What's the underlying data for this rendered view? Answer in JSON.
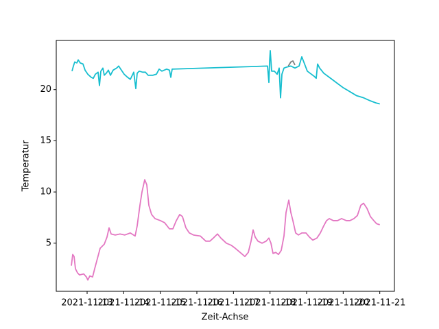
{
  "chart_data": {
    "type": "line",
    "xlabel": "Zeit-Achse",
    "ylabel": "Temperatur",
    "xlim": [
      "2021-11-12T03:45",
      "2021-11-21T09:36"
    ],
    "xticks": [
      "2021-11-13",
      "2021-11-14",
      "2021-11-15",
      "2021-11-16",
      "2021-11-17",
      "2021-11-18",
      "2021-11-19",
      "2021-11-20",
      "2021-11-21"
    ],
    "ylim": [
      0.3,
      24.8
    ],
    "yticks": [
      5,
      10,
      15,
      20
    ],
    "series": [
      {
        "color": "#7f7f7f",
        "x": [
          "2021-11-18T12:00",
          "2021-11-18T13:39",
          "2021-11-18T15:00",
          "2021-11-18T16:21"
        ],
        "values": [
          22.3,
          22.7,
          22.8,
          22.4
        ]
      },
      {
        "color": "#e377c2",
        "x": [
          "2021-11-12T13:40",
          "2021-11-12T14:33",
          "2021-11-12T15:27",
          "2021-11-12T16:21",
          "2021-11-12T17:42",
          "2021-11-12T19:03",
          "2021-11-12T21:45",
          "2021-11-12T23:33",
          "2021-11-13T00:27",
          "2021-11-13T01:48",
          "2021-11-13T03:36",
          "2021-11-13T04:57",
          "2021-11-13T06:45",
          "2021-11-13T08:33",
          "2021-11-13T11:15",
          "2021-11-13T13:03",
          "2021-11-13T14:24",
          "2021-11-13T15:45",
          "2021-11-13T18:27",
          "2021-11-13T21:36",
          "2021-11-14T00:45",
          "2021-11-14T04:21",
          "2021-11-14T07:30",
          "2021-11-14T08:51",
          "2021-11-14T10:39",
          "2021-11-14T12:00",
          "2021-11-14T13:48",
          "2021-11-14T15:09",
          "2021-11-14T16:30",
          "2021-11-14T18:18",
          "2021-11-14T20:33",
          "2021-11-15T00:09",
          "2021-11-15T02:51",
          "2021-11-15T06:00",
          "2021-11-15T08:15",
          "2021-11-15T10:30",
          "2021-11-15T12:45",
          "2021-11-15T14:33",
          "2021-11-15T16:48",
          "2021-11-15T19:03",
          "2021-11-15T21:45",
          "2021-11-16T02:15",
          "2021-11-16T05:51",
          "2021-11-16T08:33",
          "2021-11-16T10:48",
          "2021-11-16T13:30",
          "2021-11-16T15:45",
          "2021-11-16T19:21",
          "2021-11-16T22:30",
          "2021-11-17T01:12",
          "2021-11-17T04:21",
          "2021-11-17T07:30",
          "2021-11-17T09:45",
          "2021-11-17T11:33",
          "2021-11-17T12:54",
          "2021-11-17T14:15",
          "2021-11-17T16:03",
          "2021-11-17T18:45",
          "2021-11-17T21:27",
          "2021-11-17T23:15",
          "2021-11-18T00:36",
          "2021-11-18T01:57",
          "2021-11-18T03:45",
          "2021-11-18T05:33",
          "2021-11-18T07:21",
          "2021-11-18T09:09",
          "2021-11-18T10:30",
          "2021-11-18T12:18",
          "2021-11-18T13:39",
          "2021-11-18T15:00",
          "2021-11-18T16:48",
          "2021-11-18T18:36",
          "2021-11-18T20:51",
          "2021-11-18T23:33",
          "2021-11-19T01:48",
          "2021-11-19T04:03",
          "2021-11-19T06:45",
          "2021-11-19T09:00",
          "2021-11-19T11:15",
          "2021-11-19T13:03",
          "2021-11-19T14:51",
          "2021-11-19T17:33",
          "2021-11-19T20:15",
          "2021-11-19T22:57",
          "2021-11-20T02:06",
          "2021-11-20T04:21",
          "2021-11-20T07:03",
          "2021-11-20T09:18",
          "2021-11-20T11:33",
          "2021-11-20T13:21",
          "2021-11-20T15:36",
          "2021-11-20T17:51",
          "2021-11-20T20:06",
          "2021-11-20T21:54",
          "2021-11-21T00:00"
        ],
        "values": [
          2.8,
          3.9,
          3.7,
          2.5,
          2.1,
          1.9,
          2.0,
          1.7,
          1.4,
          1.8,
          1.7,
          2.5,
          3.5,
          4.5,
          4.9,
          5.6,
          6.5,
          5.9,
          5.8,
          5.9,
          5.8,
          6.0,
          5.7,
          6.7,
          8.7,
          10.0,
          11.2,
          10.7,
          8.7,
          7.8,
          7.4,
          7.2,
          7.0,
          6.4,
          6.4,
          7.2,
          7.8,
          7.6,
          6.5,
          6.0,
          5.8,
          5.7,
          5.2,
          5.2,
          5.5,
          5.9,
          5.5,
          5.0,
          4.8,
          4.5,
          4.1,
          3.7,
          4.1,
          5.2,
          6.3,
          5.6,
          5.2,
          5.0,
          5.2,
          5.5,
          5.0,
          4.0,
          4.1,
          3.9,
          4.3,
          5.7,
          8.0,
          9.2,
          8.0,
          7.2,
          6.0,
          5.8,
          6.0,
          6.0,
          5.6,
          5.3,
          5.5,
          6.0,
          6.7,
          7.2,
          7.4,
          7.2,
          7.2,
          7.4,
          7.2,
          7.2,
          7.4,
          7.7,
          8.7,
          8.9,
          8.4,
          7.6,
          7.2,
          6.9,
          6.8
        ]
      },
      {
        "color": "#17becf",
        "x": [
          "2021-11-12T14:06",
          "2021-11-12T15:00",
          "2021-11-12T15:54",
          "2021-11-12T17:15",
          "2021-11-12T18:09",
          "2021-11-12T19:30",
          "2021-11-12T21:18",
          "2021-11-12T22:39",
          "2021-11-13T00:27",
          "2021-11-13T02:42",
          "2021-11-13T04:03",
          "2021-11-13T05:24",
          "2021-11-13T07:12",
          "2021-11-13T08:06",
          "2021-11-13T09:00",
          "2021-11-13T10:21",
          "2021-11-13T11:15",
          "2021-11-13T12:36",
          "2021-11-13T13:57",
          "2021-11-13T15:18",
          "2021-11-13T17:06",
          "2021-11-13T19:21",
          "2021-11-13T20:42",
          "2021-11-13T22:03",
          "2021-11-14T00:18",
          "2021-11-14T02:33",
          "2021-11-14T04:21",
          "2021-11-14T06:36",
          "2021-11-14T07:57",
          "2021-11-14T08:51",
          "2021-11-14T10:12",
          "2021-11-14T12:27",
          "2021-11-14T14:15",
          "2021-11-14T16:03",
          "2021-11-14T19:12",
          "2021-11-14T21:27",
          "2021-11-14T23:15",
          "2021-11-15T01:03",
          "2021-11-15T04:12",
          "2021-11-15T06:00",
          "2021-11-15T06:54",
          "2021-11-15T07:48",
          "2021-11-17T22:21",
          "2021-11-17T23:15",
          "2021-11-17T23:42",
          "2021-11-18T00:09",
          "2021-11-18T01:03",
          "2021-11-18T02:51",
          "2021-11-18T04:39",
          "2021-11-18T06:00",
          "2021-11-18T06:54",
          "2021-11-18T07:48",
          "2021-11-18T09:09",
          "2021-11-18T10:57",
          "2021-11-18T13:39",
          "2021-11-18T16:21",
          "2021-11-18T19:03",
          "2021-11-18T20:51",
          "2021-11-18T22:39",
          "2021-11-19T00:27",
          "2021-11-19T02:15",
          "2021-11-19T04:57",
          "2021-11-19T06:18",
          "2021-11-19T07:12",
          "2021-11-19T08:33",
          "2021-11-19T11:15",
          "2021-11-19T14:51",
          "2021-11-19T19:21",
          "2021-11-19T23:51",
          "2021-11-20T04:21",
          "2021-11-20T08:51",
          "2021-11-20T13:21",
          "2021-11-20T17:51",
          "2021-11-20T21:27",
          "2021-11-21T00:00"
        ],
        "values": [
          21.8,
          22.3,
          22.7,
          22.6,
          22.9,
          22.6,
          22.5,
          21.9,
          21.5,
          21.2,
          21.1,
          21.5,
          21.7,
          20.4,
          21.8,
          22.1,
          21.4,
          21.6,
          21.9,
          21.4,
          21.9,
          22.1,
          22.3,
          22.0,
          21.5,
          21.2,
          21.0,
          21.7,
          20.1,
          21.6,
          21.8,
          21.7,
          21.7,
          21.4,
          21.4,
          21.5,
          22.0,
          21.8,
          22.0,
          21.9,
          21.2,
          22.0,
          22.3,
          20.7,
          22.7,
          23.8,
          21.8,
          21.8,
          21.5,
          22.1,
          19.2,
          21.5,
          22.1,
          22.2,
          22.3,
          22.1,
          22.3,
          23.2,
          22.5,
          21.8,
          21.6,
          21.3,
          21.1,
          22.5,
          22.1,
          21.6,
          21.2,
          20.7,
          20.2,
          19.8,
          19.4,
          19.2,
          18.9,
          18.7,
          18.6
        ]
      }
    ]
  }
}
